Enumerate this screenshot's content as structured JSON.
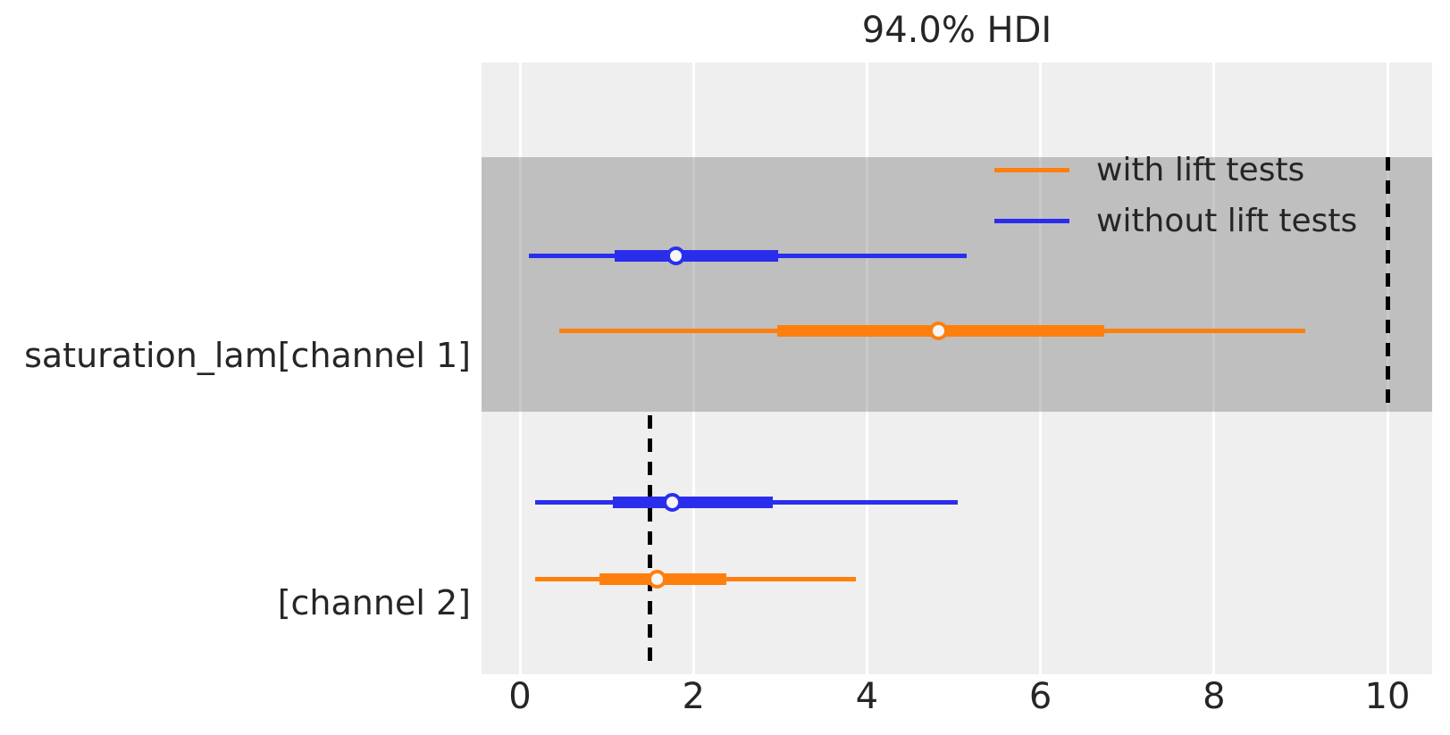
{
  "title": "94.0% HDI",
  "legend": {
    "items": [
      {
        "label": "with lift tests",
        "color": "#ff7f0e"
      },
      {
        "label": "without lift tests",
        "color": "#2a2eec"
      }
    ]
  },
  "colors": {
    "with_lift_tests": "#ff7f0e",
    "without_lift_tests": "#2a2eec",
    "plot_background": "#efefef",
    "band": "rgba(108,108,108,0.37)",
    "grid": "#ffffff",
    "reference_line": "#000000",
    "text": "#262626",
    "dot_fill": "#f6f6f6"
  },
  "chart_data": {
    "type": "forest",
    "title": "94.0% HDI",
    "hdi_prob": 0.94,
    "xlabel": "",
    "ylabel": "",
    "x_ticks": [
      0,
      2,
      4,
      6,
      8,
      10
    ],
    "xlim": [
      -0.45,
      10.5
    ],
    "grid": true,
    "legend_position": "upper-left",
    "rows": [
      {
        "label": "saturation_lam[channel 1]",
        "shaded_band": true,
        "ref_value": 10.0,
        "series": [
          {
            "name": "without lift tests",
            "color": "#2a2eec",
            "hdi": [
              0.1,
              5.15
            ],
            "quartile": [
              1.09,
              2.98
            ],
            "point": 1.8
          },
          {
            "name": "with lift tests",
            "color": "#ff7f0e",
            "hdi": [
              0.45,
              9.05
            ],
            "quartile": [
              2.97,
              6.74
            ],
            "point": 4.83
          }
        ]
      },
      {
        "label": "[channel 2]",
        "shaded_band": false,
        "ref_value": 1.5,
        "series": [
          {
            "name": "without lift tests",
            "color": "#2a2eec",
            "hdi": [
              0.18,
              5.05
            ],
            "quartile": [
              1.07,
              2.91
            ],
            "point": 1.76
          },
          {
            "name": "with lift tests",
            "color": "#ff7f0e",
            "hdi": [
              0.17,
              3.87
            ],
            "quartile": [
              0.92,
              2.38
            ],
            "point": 1.58
          }
        ]
      }
    ]
  }
}
